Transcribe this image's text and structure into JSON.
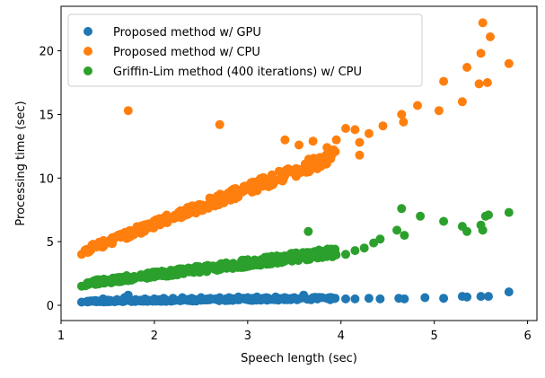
{
  "chart_data": {
    "type": "scatter",
    "title": "",
    "xlabel": "Speech length  (sec)",
    "ylabel": "Processing time  (sec)",
    "xlim": [
      1.0,
      6.1
    ],
    "ylim": [
      -1.2,
      23.5
    ],
    "x_ticks": [
      1,
      2,
      3,
      4,
      5,
      6
    ],
    "y_ticks": [
      0,
      5,
      10,
      15,
      20
    ],
    "grid": false,
    "legend_position": "top-left",
    "series": [
      {
        "name": "Proposed method w/ GPU",
        "color": "#1f77b4",
        "points": [
          [
            1.22,
            0.25
          ],
          [
            1.28,
            0.3
          ],
          [
            1.35,
            0.35
          ],
          [
            1.45,
            0.5
          ],
          [
            1.5,
            0.4
          ],
          [
            1.6,
            0.45
          ],
          [
            1.68,
            0.6
          ],
          [
            1.72,
            0.8
          ],
          [
            1.8,
            0.45
          ],
          [
            1.9,
            0.5
          ],
          [
            2.0,
            0.5
          ],
          [
            2.1,
            0.55
          ],
          [
            2.2,
            0.55
          ],
          [
            2.3,
            0.6
          ],
          [
            2.4,
            0.55
          ],
          [
            2.5,
            0.6
          ],
          [
            2.6,
            0.55
          ],
          [
            2.7,
            0.6
          ],
          [
            2.8,
            0.6
          ],
          [
            2.9,
            0.65
          ],
          [
            3.0,
            0.6
          ],
          [
            3.1,
            0.65
          ],
          [
            3.2,
            0.6
          ],
          [
            3.3,
            0.65
          ],
          [
            3.4,
            0.6
          ],
          [
            3.5,
            0.6
          ],
          [
            3.6,
            0.8
          ],
          [
            3.7,
            0.6
          ],
          [
            3.8,
            0.6
          ],
          [
            3.9,
            0.6
          ],
          [
            4.05,
            0.5
          ],
          [
            4.15,
            0.5
          ],
          [
            4.3,
            0.55
          ],
          [
            4.42,
            0.5
          ],
          [
            4.62,
            0.55
          ],
          [
            4.68,
            0.5
          ],
          [
            4.9,
            0.6
          ],
          [
            5.1,
            0.55
          ],
          [
            5.3,
            0.7
          ],
          [
            5.35,
            0.65
          ],
          [
            5.5,
            0.7
          ],
          [
            5.58,
            0.7
          ],
          [
            5.8,
            1.05
          ]
        ]
      },
      {
        "name": "Proposed method w/ CPU",
        "color": "#ff7f0e",
        "points": [
          [
            1.22,
            4.0
          ],
          [
            1.72,
            15.3
          ],
          [
            2.7,
            14.2
          ],
          [
            3.4,
            13.0
          ],
          [
            3.55,
            12.6
          ],
          [
            3.7,
            12.9
          ],
          [
            3.85,
            12.4
          ],
          [
            3.95,
            13.0
          ],
          [
            4.05,
            13.9
          ],
          [
            4.15,
            13.8
          ],
          [
            4.2,
            12.8
          ],
          [
            4.3,
            13.5
          ],
          [
            4.2,
            11.8
          ],
          [
            4.45,
            14.1
          ],
          [
            4.65,
            15.0
          ],
          [
            4.67,
            14.4
          ],
          [
            4.82,
            15.7
          ],
          [
            5.05,
            15.3
          ],
          [
            5.1,
            17.6
          ],
          [
            5.3,
            16.0
          ],
          [
            5.35,
            18.7
          ],
          [
            5.48,
            17.4
          ],
          [
            5.5,
            19.8
          ],
          [
            5.52,
            22.2
          ],
          [
            5.57,
            17.5
          ],
          [
            5.6,
            21.1
          ],
          [
            5.8,
            19.0
          ]
        ]
      },
      {
        "name": "Griffin-Lim method (400 iterations) w/ CPU",
        "color": "#2ca02c",
        "points": [
          [
            1.22,
            1.5
          ],
          [
            3.65,
            5.8
          ],
          [
            4.05,
            4.0
          ],
          [
            4.15,
            4.3
          ],
          [
            4.25,
            4.5
          ],
          [
            4.35,
            4.9
          ],
          [
            4.42,
            5.2
          ],
          [
            4.6,
            5.9
          ],
          [
            4.65,
            7.6
          ],
          [
            4.68,
            5.5
          ],
          [
            4.85,
            7.0
          ],
          [
            5.1,
            6.6
          ],
          [
            5.3,
            6.2
          ],
          [
            5.35,
            5.8
          ],
          [
            5.5,
            6.3
          ],
          [
            5.52,
            5.9
          ],
          [
            5.55,
            7.0
          ],
          [
            5.58,
            7.1
          ],
          [
            5.8,
            7.3
          ]
        ]
      }
    ],
    "bands": [
      {
        "series": 1,
        "x_range": [
          1.25,
          3.95
        ],
        "y_at_start": 4.3,
        "y_at_end": 11.8,
        "spread": 0.9,
        "n": 340
      },
      {
        "series": 2,
        "x_range": [
          1.25,
          3.95
        ],
        "y_at_start": 1.7,
        "y_at_end": 4.2,
        "spread": 0.6,
        "n": 340
      },
      {
        "series": 0,
        "x_range": [
          1.25,
          3.95
        ],
        "y_at_start": 0.3,
        "y_at_end": 0.55,
        "spread": 0.18,
        "n": 220
      }
    ]
  }
}
